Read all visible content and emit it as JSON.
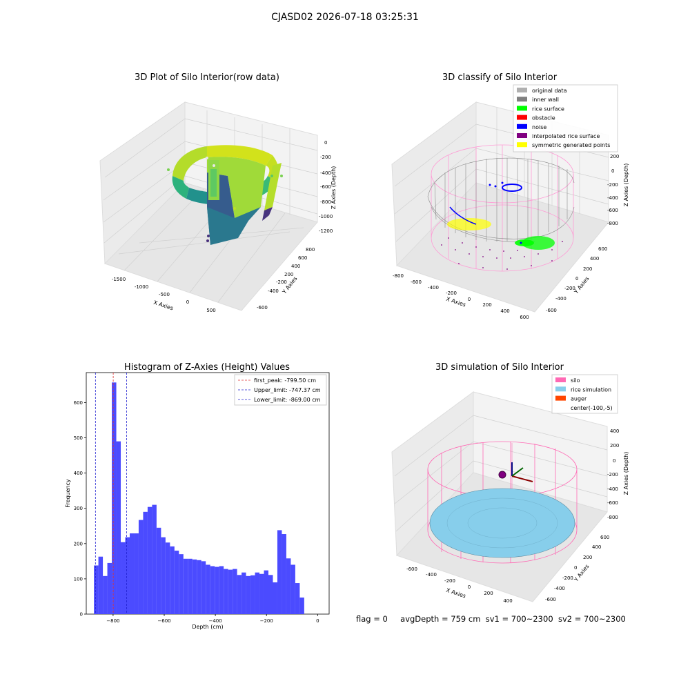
{
  "figure": {
    "suptitle": "CJASD02 2026-07-18 03:25:31",
    "footer": {
      "flag": "flag = 0",
      "avg_depth": "avgDepth = 759 cm",
      "sv1": "sv1 = 700~2300",
      "sv2": "sv2 = 700~2300"
    }
  },
  "colors": {
    "hist_bar": "#4b4bff",
    "first_peak_line": "#e03030",
    "limit_line": "#2020d0",
    "silo": "#ff69b4",
    "rice": "#87ceeb",
    "auger": "#ff4500",
    "inner_wall": "#808080",
    "original_data": "#b0b0b0",
    "rice_surface": "#00ff00",
    "obstacle": "#ff0000",
    "noise": "#0000ff",
    "interpolated": "#800080",
    "symmetric": "#ffff00"
  },
  "chart_data": [
    {
      "type": "scatter",
      "projection": "3d",
      "title": "3D Plot of Silo Interior(row data)",
      "xlabel": "X Axies",
      "ylabel": "Y Axies",
      "zlabel": "Z Axies (Depth)",
      "x_ticks": [
        "-1500",
        "-1000",
        "-500",
        "0",
        "500"
      ],
      "y_ticks": [
        "-600",
        "-400",
        "-200",
        "0",
        "200",
        "400",
        "600",
        "800"
      ],
      "z_ticks": [
        "0",
        "-200",
        "-400",
        "-600",
        "-800",
        "-1000",
        "-1200"
      ],
      "colormap": "viridis"
    },
    {
      "type": "scatter",
      "projection": "3d",
      "title": "3D classify of Silo Interior",
      "xlabel": "X Axies",
      "ylabel": "Y Axies",
      "zlabel": "Z Axies (Depth)",
      "x_ticks": [
        "-800",
        "-600",
        "-400",
        "-200",
        "0",
        "200",
        "400",
        "600"
      ],
      "y_ticks": [
        "-600",
        "-400",
        "-200",
        "0",
        "200",
        "400",
        "600"
      ],
      "z_ticks": [
        "200",
        "0",
        "-200",
        "-400",
        "-600",
        "-800"
      ],
      "legend_position": "top-right",
      "legend": [
        {
          "label": "original data",
          "color": "#b0b0b0"
        },
        {
          "label": "inner wall",
          "color": "#808080"
        },
        {
          "label": "rice surface",
          "color": "#00ff00"
        },
        {
          "label": "obstacle",
          "color": "#ff0000"
        },
        {
          "label": "noise",
          "color": "#0000ff"
        },
        {
          "label": "interpolated rice surface",
          "color": "#800080"
        },
        {
          "label": "symmetric generated points",
          "color": "#ffff00"
        }
      ]
    },
    {
      "type": "bar",
      "title": "Histogram of Z-Axies (Height) Values",
      "xlabel": "Depth (cm)",
      "ylabel": "Frequency",
      "xlim": [
        -905,
        45
      ],
      "ylim": [
        0,
        685
      ],
      "x_ticks": [
        -800,
        -600,
        -400,
        -200,
        0
      ],
      "y_ticks": [
        0,
        100,
        200,
        300,
        400,
        500,
        600
      ],
      "bin_start": -875,
      "bin_width": 17.5,
      "values": [
        138,
        163,
        108,
        145,
        657,
        490,
        204,
        218,
        229,
        229,
        267,
        290,
        304,
        310,
        245,
        218,
        203,
        192,
        180,
        170,
        157,
        157,
        155,
        153,
        150,
        140,
        136,
        134,
        136,
        128,
        126,
        128,
        111,
        118,
        108,
        110,
        118,
        114,
        124,
        111,
        90,
        238,
        227,
        158,
        140,
        88,
        47
      ],
      "reference_lines": [
        {
          "label": "first_peak: -799.50 cm",
          "x": -799.5,
          "color": "#e03030"
        },
        {
          "label": "Upper_limit: -747.37 cm",
          "x": -747.37,
          "color": "#2020d0"
        },
        {
          "label": "Lower_limit: -869.00 cm",
          "x": -869.0,
          "color": "#2020d0"
        }
      ],
      "legend_position": "top-right"
    },
    {
      "type": "scatter",
      "projection": "3d",
      "title": "3D simulation of Silo Interior",
      "xlabel": "X Axies",
      "ylabel": "Y Axies",
      "zlabel": "Z Axies (Depth)",
      "x_ticks": [
        "-600",
        "-400",
        "-200",
        "0",
        "200",
        "400"
      ],
      "y_ticks": [
        "-600",
        "-400",
        "-200",
        "0",
        "200",
        "400",
        "600"
      ],
      "z_ticks": [
        "400",
        "200",
        "0",
        "-200",
        "-400",
        "-600",
        "-800"
      ],
      "legend_position": "top-right",
      "legend": [
        {
          "label": "silo",
          "color": "#ff69b4"
        },
        {
          "label": "rice simulation",
          "color": "#87ceeb"
        },
        {
          "label": "auger",
          "color": "#ff4500"
        },
        {
          "label": "center(-100,-5)",
          "color": ""
        }
      ]
    }
  ]
}
